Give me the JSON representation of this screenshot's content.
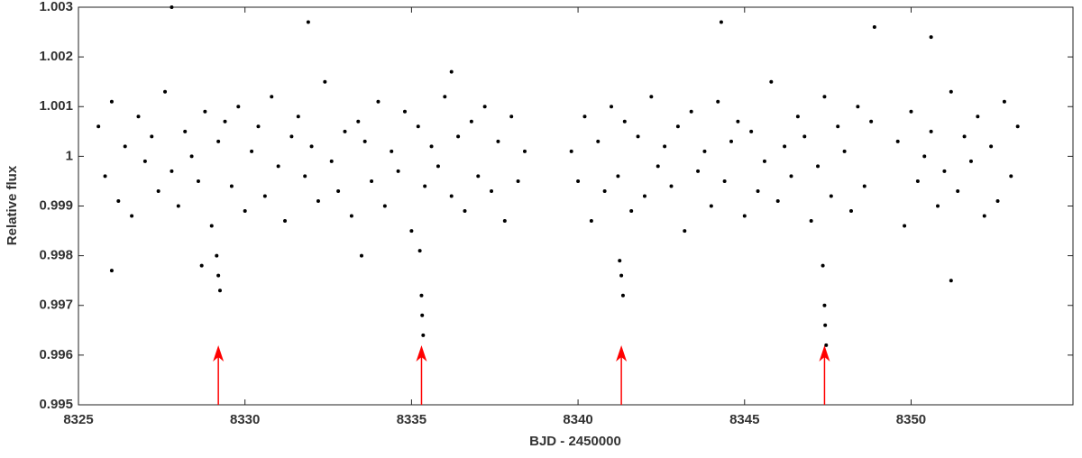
{
  "chart_data": {
    "type": "scatter",
    "xlabel": "BJD - 2450000",
    "ylabel": "Relative flux",
    "xlim": [
      8325,
      8354.86
    ],
    "ylim": [
      0.995,
      1.003
    ],
    "xticks": [
      8325,
      8330,
      8335,
      8340,
      8345,
      8350
    ],
    "yticks": [
      0.995,
      0.996,
      0.997,
      0.998,
      0.999,
      1,
      1.001,
      1.002,
      1.003
    ],
    "color": "#000000",
    "arrow_color": "#ff0000",
    "arrows": [
      8329.2,
      8335.3,
      8341.3,
      8347.4
    ],
    "x": [
      8325.6,
      8325.8,
      8326,
      8326.2,
      8326.4,
      8326.6,
      8326.8,
      8327,
      8327.2,
      8327.4,
      8327.6,
      8327.8,
      8328,
      8328.2,
      8328.4,
      8328.6,
      8328.8,
      8329,
      8329.2,
      8329.4,
      8329.6,
      8329.8,
      8330,
      8330.2,
      8330.4,
      8330.6,
      8330.8,
      8331,
      8331.2,
      8331.4,
      8331.6,
      8331.8,
      8332,
      8332.2,
      8332.4,
      8332.6,
      8332.8,
      8333,
      8333.2,
      8333.4,
      8333.6,
      8333.8,
      8334,
      8334.2,
      8334.4,
      8334.6,
      8334.8,
      8335,
      8335.2,
      8335.4,
      8335.6,
      8335.8,
      8336,
      8336.2,
      8336.4,
      8336.6,
      8336.8,
      8337,
      8337.2,
      8337.4,
      8337.6,
      8337.8,
      8338,
      8338.2,
      8338.4,
      8339.8,
      8340,
      8340.2,
      8340.4,
      8340.6,
      8340.8,
      8341,
      8341.2,
      8341.4,
      8341.6,
      8341.8,
      8342,
      8342.2,
      8342.4,
      8342.6,
      8342.8,
      8343,
      8343.2,
      8343.4,
      8343.6,
      8343.8,
      8344,
      8344.2,
      8344.4,
      8344.6,
      8344.8,
      8345,
      8345.2,
      8345.4,
      8345.6,
      8345.8,
      8346,
      8346.2,
      8346.4,
      8346.6,
      8346.8,
      8347,
      8347.2,
      8347.4,
      8347.6,
      8347.8,
      8348,
      8348.2,
      8348.4,
      8348.6,
      8348.8,
      8349.6,
      8349.8,
      8350,
      8350.2,
      8350.4,
      8350.6,
      8350.8,
      8351,
      8351.2,
      8351.4,
      8351.6,
      8351.8,
      8352,
      8352.2,
      8352.4,
      8352.6,
      8352.8,
      8353,
      8353.2,
      8329.15,
      8329.2,
      8329.25,
      8335.25,
      8335.3,
      8335.32,
      8335.35,
      8341.25,
      8341.3,
      8341.35,
      8347.35,
      8347.4,
      8347.42,
      8347.45,
      8327.8,
      8331.9,
      8328.7,
      8336.2,
      8344.3,
      8348.9,
      8351.2,
      8350.6,
      8326,
      8333.5
    ],
    "values": [
      1.0006,
      0.9996,
      1.0011,
      0.9991,
      1.0002,
      0.9988,
      1.0008,
      0.9999,
      1.0004,
      0.9993,
      1.0013,
      0.9997,
      0.999,
      1.0005,
      1,
      0.9995,
      1.0009,
      0.9986,
      1.0003,
      1.0007,
      0.9994,
      1.001,
      0.9989,
      1.0001,
      1.0006,
      0.9992,
      1.0012,
      0.9998,
      0.9987,
      1.0004,
      1.0008,
      0.9996,
      1.0002,
      0.9991,
      1.0015,
      0.9999,
      0.9993,
      1.0005,
      0.9988,
      1.0007,
      1.0003,
      0.9995,
      1.0011,
      0.999,
      1.0001,
      0.9997,
      1.0009,
      0.9985,
      1.0006,
      0.9994,
      1.0002,
      0.9998,
      1.0012,
      0.9992,
      1.0004,
      0.9989,
      1.0007,
      0.9996,
      1.001,
      0.9993,
      1.0003,
      0.9987,
      1.0008,
      0.9995,
      1.0001,
      1.0001,
      0.9995,
      1.0008,
      0.9987,
      1.0003,
      0.9993,
      1.001,
      0.9996,
      1.0007,
      0.9989,
      1.0004,
      0.9992,
      1.0012,
      0.9998,
      1.0002,
      0.9994,
      1.0006,
      0.9985,
      1.0009,
      0.9997,
      1.0001,
      0.999,
      1.0011,
      0.9995,
      1.0003,
      1.0007,
      0.9988,
      1.0005,
      0.9993,
      0.9999,
      1.0015,
      0.9991,
      1.0002,
      0.9996,
      1.0008,
      1.0004,
      0.9987,
      0.9998,
      1.0012,
      0.9992,
      1.0006,
      1.0001,
      0.9989,
      1.001,
      0.9994,
      1.0007,
      1.0003,
      0.9986,
      1.0009,
      0.9995,
      1,
      1.0005,
      0.999,
      0.9997,
      1.0013,
      0.9993,
      1.0004,
      0.9999,
      1.0008,
      0.9988,
      1.0002,
      0.9991,
      1.0011,
      0.9996,
      1.0006,
      0.998,
      0.9976,
      0.9973,
      0.9981,
      0.9972,
      0.9968,
      0.9964,
      0.9979,
      0.9976,
      0.9972,
      0.9978,
      0.997,
      0.9966,
      0.9962,
      1.003,
      1.0027,
      0.9978,
      1.0017,
      1.0027,
      1.0026,
      0.9975,
      1.0024,
      0.9977,
      0.998
    ]
  }
}
